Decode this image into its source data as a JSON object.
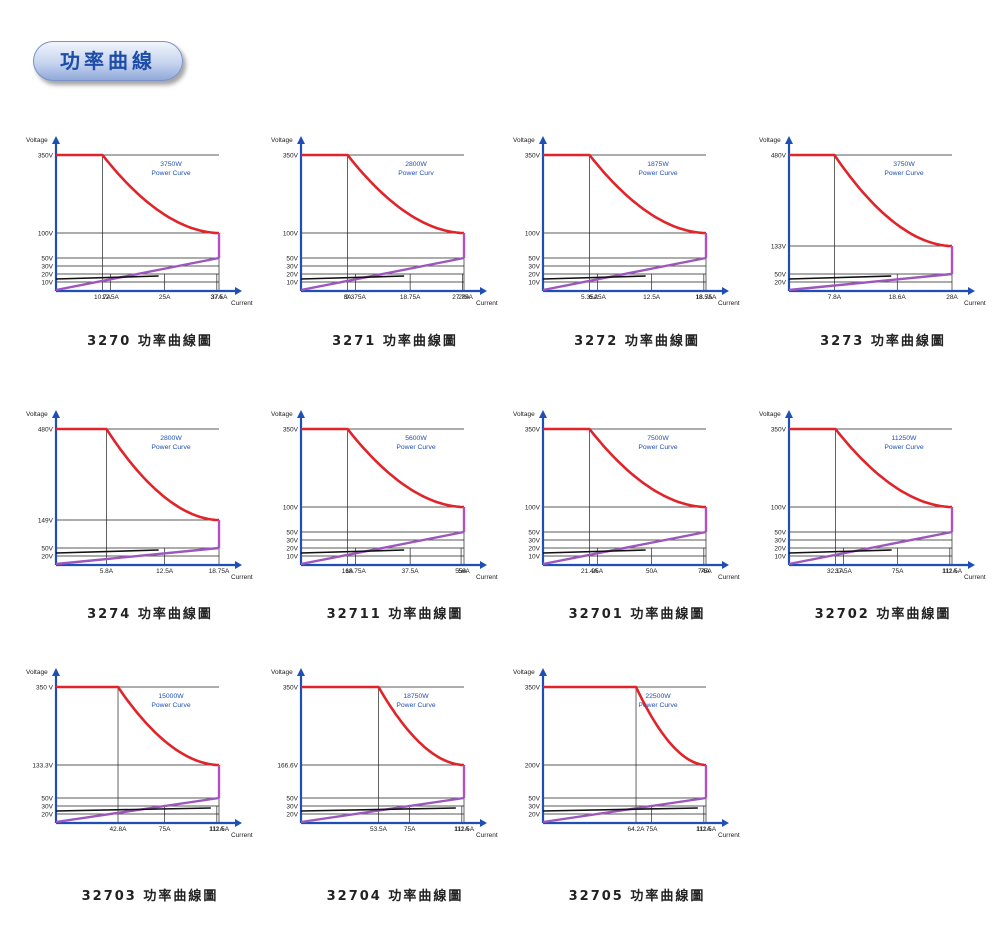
{
  "header": {
    "title": "功率曲線"
  },
  "chart_data": [
    {
      "type": "line",
      "model": "3270",
      "caption": "3270 功率曲線圖",
      "ylabel": "Voltage",
      "xlabel": "Current",
      "power_label": "3750W",
      "power_label_2": "Power Curve",
      "vmax": 350,
      "imax": 37.5,
      "v_levels": [
        350,
        100,
        50,
        30,
        20,
        10
      ],
      "v_tick_labels": [
        "350V",
        "100V",
        "50V",
        "30V",
        "20V",
        "10V"
      ],
      "i_ticks": [
        10.7,
        12.5,
        25,
        37,
        37.5
      ],
      "i_tick_labels": [
        "10.7A",
        "12.5A",
        "25A",
        "37A",
        "37.5A"
      ]
    },
    {
      "type": "line",
      "model": "3271",
      "caption": "3271 功率曲線圖",
      "ylabel": "Voltage",
      "xlabel": "Current",
      "power_label": "2800W",
      "power_label_2": "Power Curv",
      "vmax": 350,
      "imax": 28,
      "v_levels": [
        350,
        100,
        50,
        30,
        20,
        10
      ],
      "v_tick_labels": [
        "350V",
        "100V",
        "50V",
        "30V",
        "20V",
        "10V"
      ],
      "i_ticks": [
        8,
        9.375,
        18.75,
        27.75,
        28
      ],
      "i_tick_labels": [
        "8A",
        "9.375A",
        "18.75A",
        "27.75A",
        "28A"
      ]
    },
    {
      "type": "line",
      "model": "3272",
      "caption": "3272 功率曲線圖",
      "ylabel": "Voltage",
      "xlabel": "Current",
      "power_label": "1875W",
      "power_label_2": "Power Curve",
      "vmax": 350,
      "imax": 18.75,
      "v_levels": [
        350,
        100,
        50,
        30,
        20,
        10
      ],
      "v_tick_labels": [
        "350V",
        "100V",
        "50V",
        "30V",
        "20V",
        "10V"
      ],
      "i_ticks": [
        5.35,
        6.25,
        12.5,
        18.5,
        18.75
      ],
      "i_tick_labels": [
        "5.35A",
        "6.25A",
        "12.5A",
        "18.5A",
        "18.75A"
      ]
    },
    {
      "type": "line",
      "model": "3273",
      "caption": "3273 功率曲線圖",
      "ylabel": "Voltage",
      "xlabel": "Current",
      "power_label": "3750W",
      "power_label_2": "Power Curve",
      "vmax": 480,
      "imax": 28,
      "v_levels": [
        480,
        133,
        50,
        20
      ],
      "v_tick_labels": [
        "480V",
        "133V",
        "50V",
        "20V"
      ],
      "i_ticks": [
        7.8,
        18.6,
        28
      ],
      "i_tick_labels": [
        "7.8A",
        "18.6A",
        "28A"
      ]
    },
    {
      "type": "line",
      "model": "3274",
      "caption": "3274 功率曲線圖",
      "ylabel": "Voltage",
      "xlabel": "Current",
      "power_label": "2800W",
      "power_label_2": "Power Curve",
      "vmax": 480,
      "imax": 18.75,
      "v_levels": [
        480,
        149,
        50,
        20
      ],
      "v_tick_labels": [
        "480V",
        "149V",
        "50V",
        "20V"
      ],
      "i_ticks": [
        5.8,
        12.5,
        18.75
      ],
      "i_tick_labels": [
        "5.8A",
        "12.5A",
        "18.75A"
      ]
    },
    {
      "type": "line",
      "model": "32711",
      "caption": "32711 功率曲線圖",
      "ylabel": "Voltage",
      "xlabel": "Current",
      "power_label": "5600W",
      "power_label_2": "Power Curve",
      "vmax": 350,
      "imax": 56,
      "v_levels": [
        350,
        100,
        50,
        30,
        20,
        10
      ],
      "v_tick_labels": [
        "350V",
        "100V",
        "50V",
        "30V",
        "20V",
        "10V"
      ],
      "i_ticks": [
        16,
        18.75,
        37.5,
        55,
        56
      ],
      "i_tick_labels": [
        "16A",
        "18.75A",
        "37.5A",
        "55A",
        "56A"
      ]
    },
    {
      "type": "line",
      "model": "32701",
      "caption": "32701 功率曲線圖",
      "ylabel": "Voltage",
      "xlabel": "Current",
      "power_label": "7500W",
      "power_label_2": "Power Curve",
      "vmax": 350,
      "imax": 75,
      "v_levels": [
        350,
        100,
        50,
        30,
        20,
        10
      ],
      "v_tick_labels": [
        "350V",
        "100V",
        "50V",
        "30V",
        "20V",
        "10V"
      ],
      "i_ticks": [
        21.4,
        25,
        50,
        74,
        75
      ],
      "i_tick_labels": [
        "21.4A",
        "25A",
        "50A",
        "74A",
        "75A"
      ]
    },
    {
      "type": "line",
      "model": "32702",
      "caption": "32702 功率曲線圖",
      "ylabel": "Voltage",
      "xlabel": "Current",
      "power_label": "11250W",
      "power_label_2": "Power Curve",
      "vmax": 350,
      "imax": 112.5,
      "v_levels": [
        350,
        100,
        50,
        30,
        20,
        10
      ],
      "v_tick_labels": [
        "350V",
        "100V",
        "50V",
        "30V",
        "20V",
        "10V"
      ],
      "i_ticks": [
        32.1,
        37.5,
        75,
        111,
        112.5
      ],
      "i_tick_labels": [
        "32.1A",
        "37.5A",
        "75A",
        "111A",
        "112.5A"
      ]
    },
    {
      "type": "line",
      "model": "32703",
      "caption": "32703 功率曲線圖",
      "ylabel": "Voltage",
      "xlabel": "Current",
      "power_label": "15000W",
      "power_label_2": "Power Curve",
      "vmax": 350,
      "imax": 112.5,
      "v_levels": [
        350,
        133.3,
        50,
        30,
        20
      ],
      "v_tick_labels": [
        "350 V",
        "133.3V",
        "50V",
        "30V",
        "20V"
      ],
      "i_ticks": [
        42.8,
        75,
        111,
        112.5
      ],
      "i_tick_labels": [
        "42.8A",
        "75A",
        "111A",
        "112.5A"
      ]
    },
    {
      "type": "line",
      "model": "32704",
      "caption": "32704 功率曲線圖",
      "ylabel": "Voltage",
      "xlabel": "Current",
      "power_label": "18750W",
      "power_label_2": "Power Curve",
      "vmax": 350,
      "imax": 112.5,
      "v_levels": [
        350,
        166.6,
        50,
        30,
        20
      ],
      "v_tick_labels": [
        "350V",
        "166.6V",
        "50V",
        "30V",
        "20V"
      ],
      "i_ticks": [
        53.5,
        75,
        111,
        112.5
      ],
      "i_tick_labels": [
        "53.5A",
        "75A",
        "111A",
        "112.5A"
      ]
    },
    {
      "type": "line",
      "model": "32705",
      "caption": "32705 功率曲線圖",
      "ylabel": "Voltage",
      "xlabel": "Current",
      "power_label": "22500W",
      "power_label_2": "Power Curve",
      "vmax": 350,
      "imax": 112.5,
      "v_levels": [
        350,
        200,
        50,
        30,
        20
      ],
      "v_tick_labels": [
        "350V",
        "200V",
        "50V",
        "30V",
        "20V"
      ],
      "i_ticks": [
        64.2,
        75,
        111,
        112.5
      ],
      "i_tick_labels": [
        "64.2A",
        "75A",
        "111A",
        "112.5A"
      ]
    }
  ]
}
